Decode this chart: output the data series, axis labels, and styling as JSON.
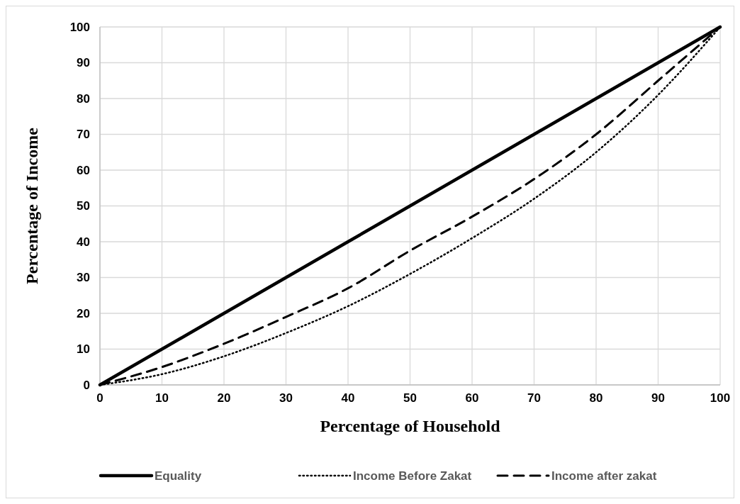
{
  "chart_data": {
    "type": "line",
    "xlabel": "Percentage of Household",
    "ylabel": "Percentage of Income",
    "x": [
      0,
      10,
      20,
      30,
      40,
      50,
      60,
      70,
      80,
      90,
      100
    ],
    "series": [
      {
        "name": "Equality",
        "color": "#000000",
        "line_style": "solid",
        "values": [
          0,
          10,
          20,
          30,
          40,
          50,
          60,
          70,
          80,
          90,
          100
        ]
      },
      {
        "name": "Income Before Zakat",
        "color": "#000000",
        "line_style": "dotted",
        "values": [
          0,
          3,
          8,
          14.5,
          22,
          31,
          41,
          52,
          65,
          81,
          100
        ]
      },
      {
        "name": "Income after zakat",
        "color": "#000000",
        "line_style": "dashed",
        "values": [
          0,
          5,
          11.5,
          19,
          27,
          37.5,
          47,
          57.5,
          70,
          85,
          100
        ]
      }
    ],
    "xlim": [
      0,
      100
    ],
    "ylim": [
      0,
      100
    ],
    "xticks": [
      0,
      10,
      20,
      30,
      40,
      50,
      60,
      70,
      80,
      90,
      100
    ],
    "yticks": [
      0,
      10,
      20,
      30,
      40,
      50,
      60,
      70,
      80,
      90,
      100
    ],
    "grid": true,
    "legend": "bottom",
    "marker": "none"
  }
}
